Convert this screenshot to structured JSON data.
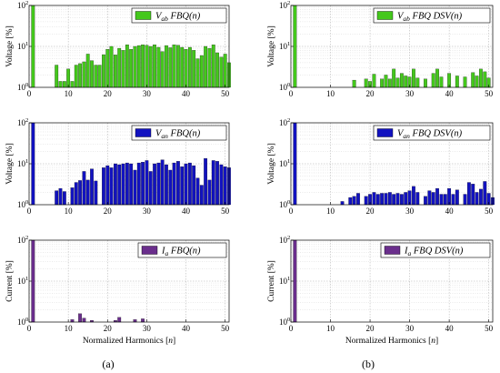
{
  "colors": {
    "green": "#44c81c",
    "blue": "#1212c0",
    "purple": "#6a2e8c",
    "grid": "#c8c8c8"
  },
  "panel_tags": [
    "(a)",
    "(b)"
  ],
  "legend_labels": {
    "a1": {
      "main": "V",
      "sub": "ab",
      "rest": " FBQ(n)"
    },
    "b1": {
      "main": "V",
      "sub": "ab",
      "rest": " FBQ DSV(n)"
    },
    "a2": {
      "main": "V",
      "sub": "an",
      "rest": " FBQ(n)"
    },
    "b2": {
      "main": "V",
      "sub": "an",
      "rest": " FBQ DSV(n)"
    },
    "a3": {
      "main": "I",
      "sub": "a",
      "rest": " FBQ(n)"
    },
    "b3": {
      "main": "I",
      "sub": "a",
      "rest": " FBQ DSV(n)"
    }
  },
  "chart_data": [
    {
      "id": "a1",
      "type": "bar",
      "color": "green",
      "ylabel": "Voltage [%]",
      "xlabel": "",
      "yscale": "log",
      "ylim": [
        1,
        100
      ],
      "xlim": [
        0,
        51
      ],
      "xticks": [
        0,
        10,
        20,
        30,
        40,
        50
      ],
      "grid": true,
      "legend": "top-right",
      "x": [
        1,
        7,
        8,
        9,
        10,
        11,
        12,
        13,
        14,
        15,
        16,
        17,
        18,
        19,
        20,
        21,
        22,
        23,
        24,
        25,
        26,
        27,
        28,
        29,
        30,
        31,
        32,
        33,
        34,
        35,
        36,
        37,
        38,
        39,
        40,
        41,
        42,
        43,
        44,
        45,
        46,
        47,
        48,
        49,
        50,
        51
      ],
      "values": [
        100,
        3.5,
        1.4,
        1.4,
        2.8,
        1.4,
        3.5,
        3.8,
        4.2,
        6.5,
        4.5,
        3.5,
        3.5,
        6.3,
        8.5,
        10,
        6.2,
        9,
        8,
        11,
        8.5,
        10,
        10.5,
        11,
        10.7,
        10,
        11,
        9.5,
        7.5,
        10.5,
        9.3,
        11,
        10.7,
        9.5,
        8.5,
        9.5,
        8,
        5,
        6,
        10,
        9,
        11,
        7,
        5.5,
        6.5,
        4
      ]
    },
    {
      "id": "b1",
      "type": "bar",
      "color": "green",
      "ylabel": "Voltage [%]",
      "xlabel": "",
      "yscale": "log",
      "ylim": [
        1,
        100
      ],
      "xlim": [
        0,
        51
      ],
      "xticks": [
        0,
        10,
        20,
        30,
        40,
        50
      ],
      "grid": true,
      "legend": "top-right",
      "x": [
        1,
        16,
        19,
        20,
        21,
        23,
        24,
        25,
        26,
        27,
        28,
        29,
        30,
        31,
        32,
        34,
        36,
        37,
        38,
        40,
        42,
        44,
        46,
        47,
        48,
        49,
        50
      ],
      "values": [
        100,
        1.5,
        1.6,
        1.4,
        2.1,
        1.6,
        2,
        1.6,
        2.8,
        1.7,
        2.2,
        1.9,
        1.8,
        2.8,
        1.7,
        1.6,
        2.2,
        2.8,
        1.8,
        2.2,
        1.9,
        1.8,
        2.3,
        1.9,
        2.8,
        2.4,
        1.7
      ]
    },
    {
      "id": "a2",
      "type": "bar",
      "color": "blue",
      "ylabel": "Voltage [%]",
      "xlabel": "",
      "yscale": "log",
      "ylim": [
        1,
        100
      ],
      "xlim": [
        0,
        51
      ],
      "xticks": [
        0,
        10,
        20,
        30,
        40,
        50
      ],
      "grid": true,
      "legend": "top-right",
      "x": [
        1,
        7,
        8,
        9,
        11,
        12,
        13,
        14,
        15,
        16,
        17,
        19,
        20,
        21,
        22,
        23,
        24,
        25,
        26,
        27,
        28,
        29,
        30,
        31,
        32,
        33,
        34,
        35,
        36,
        37,
        38,
        39,
        40,
        41,
        42,
        43,
        44,
        45,
        46,
        47,
        48,
        49,
        50,
        51
      ],
      "values": [
        100,
        2.2,
        2.5,
        2.1,
        2.6,
        3.5,
        3.9,
        6.5,
        4,
        7.5,
        3.8,
        8,
        9,
        8,
        10,
        9.5,
        10,
        10.5,
        10,
        7,
        10.5,
        11,
        12,
        6.5,
        10,
        10.5,
        12.5,
        9.5,
        7,
        10.5,
        11.5,
        8.5,
        10,
        10.5,
        9,
        4.5,
        3,
        13.5,
        4,
        12,
        11.5,
        9.5,
        8.5,
        8
      ]
    },
    {
      "id": "b2",
      "type": "bar",
      "color": "blue",
      "ylabel": "Voltage [%]",
      "xlabel": "",
      "yscale": "log",
      "ylim": [
        1,
        100
      ],
      "xlim": [
        0,
        51
      ],
      "xticks": [
        0,
        10,
        20,
        30,
        40,
        50
      ],
      "grid": true,
      "legend": "top-right",
      "x": [
        1,
        13,
        15,
        16,
        17,
        19,
        20,
        21,
        22,
        23,
        24,
        25,
        26,
        27,
        28,
        29,
        30,
        31,
        32,
        34,
        35,
        36,
        37,
        38,
        39,
        40,
        41,
        42,
        44,
        45,
        46,
        47,
        48,
        49,
        50,
        51
      ],
      "values": [
        100,
        1.2,
        1.5,
        1.6,
        1.9,
        1.6,
        1.8,
        2,
        1.8,
        1.9,
        1.9,
        2,
        1.8,
        1.9,
        1.8,
        2,
        2.2,
        2.8,
        2,
        1.6,
        2.2,
        2,
        2.5,
        1.8,
        1.8,
        2.5,
        1.8,
        2.3,
        1.8,
        3.5,
        3.2,
        2,
        2.4,
        3.7,
        1.9,
        1.5
      ]
    },
    {
      "id": "a3",
      "type": "bar",
      "color": "purple",
      "ylabel": "Current [%]",
      "xlabel": "Normalized Harmonics [n]",
      "yscale": "log",
      "ylim": [
        1,
        100
      ],
      "xlim": [
        0,
        51
      ],
      "xticks": [
        0,
        10,
        20,
        30,
        40,
        50
      ],
      "grid": true,
      "legend": "top-right",
      "x": [
        1,
        11,
        13,
        14,
        16,
        22,
        23,
        27,
        29
      ],
      "values": [
        100,
        1.15,
        1.6,
        1.25,
        1.1,
        1.1,
        1.3,
        1.15,
        1.2
      ]
    },
    {
      "id": "b3",
      "type": "bar",
      "color": "purple",
      "ylabel": "Current [%]",
      "xlabel": "Normalized Harmonics [n]",
      "yscale": "log",
      "ylim": [
        1,
        100
      ],
      "xlim": [
        0,
        51
      ],
      "xticks": [
        0,
        10,
        20,
        30,
        40,
        50
      ],
      "grid": true,
      "legend": "top-right",
      "x": [
        1
      ],
      "values": [
        100
      ]
    }
  ]
}
